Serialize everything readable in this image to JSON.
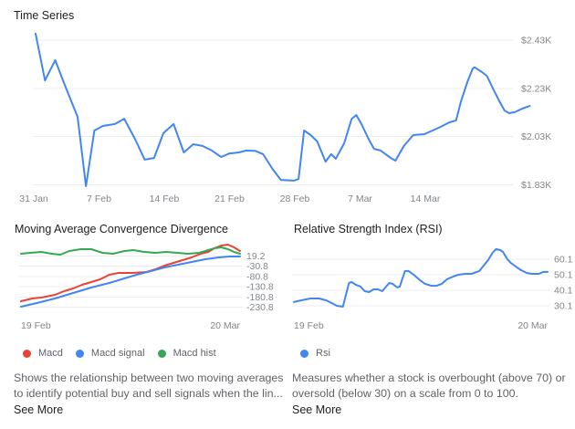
{
  "colors": {
    "blue": "#4285f4",
    "red": "#ea4335",
    "green": "#34a853",
    "grid": "#ececec",
    "axis_text": "#80868b",
    "title_text": "#202124",
    "description_text": "#5f6368"
  },
  "panels": {
    "time_series": {
      "title": "Time Series"
    },
    "macd": {
      "title": "Moving Average Convergence Divergence",
      "legend": [
        {
          "label": "Macd",
          "color": "#ea4335"
        },
        {
          "label": "Macd signal",
          "color": "#4285f4"
        },
        {
          "label": "Macd hist",
          "color": "#34a853"
        }
      ],
      "description_lines": [
        "Shows the relationship between two moving averages",
        "to identify potential buy and sell signals when the lin..."
      ],
      "see_more": "See More"
    },
    "rsi": {
      "title": "Relative Strength Index (RSI)",
      "legend": [
        {
          "label": "Rsi",
          "color": "#4285f4"
        }
      ],
      "description_lines": [
        "Measures whether a stock is overbought (above 70) or",
        "oversold (below 30) on a scale from 0 to 100."
      ],
      "see_more": "See More"
    }
  },
  "chart_data": [
    {
      "id": "time_series",
      "type": "line",
      "title": "Time Series",
      "grid": true,
      "legend_position": "none",
      "xlim_days": [
        0,
        53.2
      ],
      "ylim": [
        1810,
        2470
      ],
      "x_ticks": [
        {
          "label": "31 Jan",
          "day": 0
        },
        {
          "label": "7 Feb",
          "day": 7
        },
        {
          "label": "14 Feb",
          "day": 14
        },
        {
          "label": "21 Feb",
          "day": 21
        },
        {
          "label": "28 Feb",
          "day": 28
        },
        {
          "label": "7 Mar",
          "day": 35
        },
        {
          "label": "14 Mar",
          "day": 42
        }
      ],
      "y_ticks": [
        {
          "label": "$2.43K",
          "value": 2430
        },
        {
          "label": "$2.23K",
          "value": 2230
        },
        {
          "label": "$2.03K",
          "value": 2030
        },
        {
          "label": "$1.83K",
          "value": 1830
        }
      ],
      "series": [
        {
          "name": "Price",
          "color": "#4285f4",
          "points": [
            [
              0.2,
              2457
            ],
            [
              1.2,
              2263
            ],
            [
              2.3,
              2347
            ],
            [
              3.2,
              2256
            ],
            [
              4.3,
              2150
            ],
            [
              4.7,
              2112
            ],
            [
              5.6,
              1824
            ],
            [
              6.5,
              2055
            ],
            [
              7.4,
              2074
            ],
            [
              8.7,
              2082
            ],
            [
              9.7,
              2104
            ],
            [
              10.9,
              2017
            ],
            [
              11.9,
              1934
            ],
            [
              12.9,
              1941
            ],
            [
              13.9,
              2044
            ],
            [
              15.0,
              2082
            ],
            [
              16.1,
              1964
            ],
            [
              17.1,
              1998
            ],
            [
              18.1,
              1991
            ],
            [
              19.1,
              1972
            ],
            [
              20.1,
              1945
            ],
            [
              21.0,
              1960
            ],
            [
              22.0,
              1964
            ],
            [
              22.8,
              1972
            ],
            [
              23.8,
              1970
            ],
            [
              24.6,
              1957
            ],
            [
              25.6,
              1896
            ],
            [
              26.5,
              1850
            ],
            [
              27.9,
              1847
            ],
            [
              28.4,
              1854
            ],
            [
              29.0,
              2055
            ],
            [
              29.7,
              2036
            ],
            [
              30.4,
              2010
            ],
            [
              31.3,
              1926
            ],
            [
              31.9,
              1957
            ],
            [
              32.4,
              1938
            ],
            [
              33.3,
              2002
            ],
            [
              34.1,
              2104
            ],
            [
              34.6,
              2119
            ],
            [
              35.2,
              2078
            ],
            [
              35.9,
              2021
            ],
            [
              36.5,
              1979
            ],
            [
              37.2,
              1972
            ],
            [
              38.3,
              1941
            ],
            [
              38.8,
              1930
            ],
            [
              39.7,
              1991
            ],
            [
              40.7,
              2036
            ],
            [
              41.9,
              2040
            ],
            [
              43.4,
              2066
            ],
            [
              44.6,
              2089
            ],
            [
              45.3,
              2097
            ],
            [
              45.8,
              2172
            ],
            [
              46.5,
              2256
            ],
            [
              47.1,
              2313
            ],
            [
              47.3,
              2317
            ],
            [
              48.1,
              2297
            ],
            [
              48.6,
              2282
            ],
            [
              49.4,
              2218
            ],
            [
              49.9,
              2180
            ],
            [
              50.5,
              2138
            ],
            [
              51.0,
              2127
            ],
            [
              51.6,
              2131
            ],
            [
              52.4,
              2146
            ],
            [
              53.2,
              2157
            ]
          ]
        }
      ]
    },
    {
      "id": "macd",
      "type": "line",
      "title": "Moving Average Convergence Divergence",
      "grid": true,
      "legend_position": "bottom",
      "xlim_days": [
        0,
        29
      ],
      "ylim": [
        -265,
        80
      ],
      "x_ticks": [
        {
          "label": "19 Feb",
          "day": 0
        },
        {
          "label": "20 Mar",
          "day": 29
        }
      ],
      "y_ticks": [
        {
          "label": "19.2",
          "value": 19.2
        },
        {
          "label": "-30.8",
          "value": -30.8
        },
        {
          "label": "-80.8",
          "value": -80.8
        },
        {
          "label": "-130.8",
          "value": -130.8
        },
        {
          "label": "-180.8",
          "value": -180.8
        },
        {
          "label": "-230.8",
          "value": -230.8
        }
      ],
      "series": [
        {
          "name": "Macd",
          "color": "#ea4335",
          "points": [
            [
              0,
              -201.8
            ],
            [
              1.5,
              -188.4
            ],
            [
              2.7,
              -183.9
            ],
            [
              3.9,
              -175.0
            ],
            [
              4.5,
              -170.5
            ],
            [
              5.7,
              -152.7
            ],
            [
              6.9,
              -139.3
            ],
            [
              8.1,
              -121.4
            ],
            [
              9.3,
              -108.0
            ],
            [
              10.5,
              -94.6
            ],
            [
              11.7,
              -72.3
            ],
            [
              12.9,
              -63.4
            ],
            [
              14.7,
              -63.4
            ],
            [
              16.6,
              -58.9
            ],
            [
              17.8,
              -45.5
            ],
            [
              19.0,
              -27.7
            ],
            [
              20.2,
              -14.3
            ],
            [
              21.4,
              -0.9
            ],
            [
              22.6,
              12.5
            ],
            [
              23.8,
              30.4
            ],
            [
              24.8,
              39.3
            ],
            [
              25.6,
              57.1
            ],
            [
              26.5,
              70.5
            ],
            [
              27.4,
              75.0
            ],
            [
              28.2,
              61.6
            ],
            [
              29,
              43.8
            ]
          ]
        },
        {
          "name": "Macd signal",
          "color": "#4285f4",
          "points": [
            [
              0,
              -228.6
            ],
            [
              2.1,
              -210.7
            ],
            [
              4.5,
              -188.4
            ],
            [
              6.9,
              -161.6
            ],
            [
              9.3,
              -134.8
            ],
            [
              11.7,
              -112.5
            ],
            [
              13.3,
              -94.6
            ],
            [
              15.3,
              -72.3
            ],
            [
              17.2,
              -54.5
            ],
            [
              19.0,
              -36.6
            ],
            [
              20.8,
              -23.2
            ],
            [
              22.6,
              -9.8
            ],
            [
              24.4,
              3.6
            ],
            [
              26.2,
              12.5
            ],
            [
              27.7,
              17.0
            ],
            [
              29,
              17.0
            ]
          ]
        },
        {
          "name": "Macd hist",
          "color": "#34a853",
          "points": [
            [
              0,
              30.4
            ],
            [
              1.2,
              34.8
            ],
            [
              2.7,
              39.3
            ],
            [
              4.1,
              30.4
            ],
            [
              5.2,
              26.0
            ],
            [
              6.4,
              43.8
            ],
            [
              7.9,
              52.7
            ],
            [
              9.3,
              52.7
            ],
            [
              10.8,
              35.0
            ],
            [
              12.2,
              30.4
            ],
            [
              13.7,
              43.8
            ],
            [
              14.9,
              48.2
            ],
            [
              16.3,
              39.3
            ],
            [
              17.8,
              34.8
            ],
            [
              19.2,
              39.3
            ],
            [
              20.7,
              34.8
            ],
            [
              22.1,
              30.4
            ],
            [
              23.6,
              34.8
            ],
            [
              24.8,
              48.2
            ],
            [
              25.6,
              57.1
            ],
            [
              26.5,
              61.6
            ],
            [
              27.4,
              52.7
            ],
            [
              28.2,
              39.3
            ],
            [
              29,
              30.4
            ]
          ]
        }
      ]
    },
    {
      "id": "rsi",
      "type": "line",
      "title": "Relative Strength Index (RSI)",
      "grid": true,
      "legend_position": "bottom",
      "xlim_days": [
        0,
        29
      ],
      "ylim": [
        28,
        68
      ],
      "x_ticks": [
        {
          "label": "19 Feb",
          "day": 0
        },
        {
          "label": "20 Mar",
          "day": 29
        }
      ],
      "y_ticks": [
        {
          "label": "60.1",
          "value": 60.1
        },
        {
          "label": "50.1",
          "value": 50.1
        },
        {
          "label": "40.1",
          "value": 40.1
        },
        {
          "label": "30.1",
          "value": 30.1
        }
      ],
      "series": [
        {
          "name": "Rsi",
          "color": "#4285f4",
          "points": [
            [
              0,
              32.5
            ],
            [
              0.8,
              33.6
            ],
            [
              1.9,
              34.8
            ],
            [
              2.9,
              34.8
            ],
            [
              3.7,
              33.6
            ],
            [
              4.3,
              31.9
            ],
            [
              4.9,
              30.1
            ],
            [
              5.6,
              29.5
            ],
            [
              6.0,
              38.3
            ],
            [
              6.3,
              44.8
            ],
            [
              6.6,
              45.4
            ],
            [
              7.1,
              43.6
            ],
            [
              7.6,
              42.5
            ],
            [
              8.1,
              39.5
            ],
            [
              8.6,
              38.9
            ],
            [
              9.1,
              40.7
            ],
            [
              9.6,
              40.7
            ],
            [
              10.1,
              39.5
            ],
            [
              10.9,
              44.8
            ],
            [
              11.3,
              44.2
            ],
            [
              11.8,
              41.9
            ],
            [
              12.1,
              42.5
            ],
            [
              12.7,
              52.5
            ],
            [
              13.1,
              52.5
            ],
            [
              13.7,
              50.1
            ],
            [
              14.4,
              46.6
            ],
            [
              15.0,
              44.2
            ],
            [
              15.7,
              43.0
            ],
            [
              16.3,
              43.0
            ],
            [
              16.9,
              44.2
            ],
            [
              17.5,
              47.2
            ],
            [
              18.2,
              48.9
            ],
            [
              18.8,
              50.1
            ],
            [
              19.6,
              50.7
            ],
            [
              20.3,
              50.7
            ],
            [
              21.2,
              52.5
            ],
            [
              22.2,
              59.5
            ],
            [
              22.7,
              64.2
            ],
            [
              23.1,
              66.6
            ],
            [
              23.6,
              66.0
            ],
            [
              23.9,
              64.8
            ],
            [
              24.4,
              60.1
            ],
            [
              24.8,
              57.7
            ],
            [
              25.5,
              54.8
            ],
            [
              26.0,
              53.0
            ],
            [
              26.6,
              51.3
            ],
            [
              27.2,
              50.7
            ],
            [
              28.0,
              50.7
            ],
            [
              28.5,
              51.9
            ],
            [
              29,
              51.9
            ]
          ]
        }
      ]
    }
  ]
}
